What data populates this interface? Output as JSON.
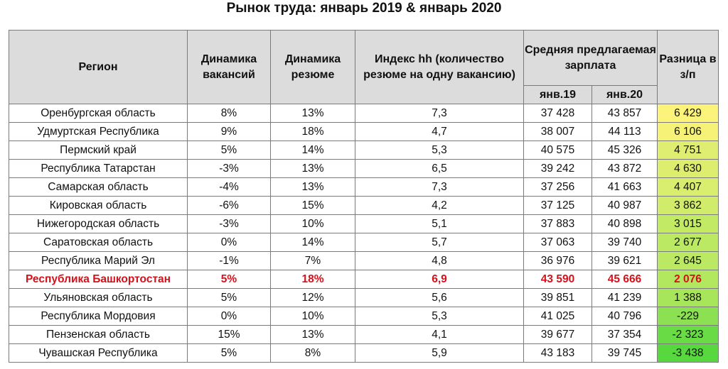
{
  "title": "Рынок труда: январь 2019 & январь 2020",
  "headers": {
    "region": "Регион",
    "vacancies": "Динамика вакансий",
    "resumes": "Динамика резюме",
    "hh_index": "Индекс hh (количество резюме на одну вакансию)",
    "salary_group": "Средняя предлагаемая зарплата",
    "jan19": "янв.19",
    "jan20": "янв.20",
    "diff": "Разница в з/п"
  },
  "colors": {
    "header_bg": "#dcdcdc",
    "highlight_text": "#d4111b",
    "diff_scale_high": "#fbf37a",
    "diff_scale_low": "#56d83e"
  },
  "highlight_region": "Республика Башкортостан",
  "chart_data": {
    "type": "table",
    "title": "Рынок труда: январь 2019 & январь 2020",
    "columns": [
      "Регион",
      "Динамика вакансий",
      "Динамика резюме",
      "Индекс hh (количество резюме на одну вакансию)",
      "Средняя предлагаемая зарплата янв.19",
      "Средняя предлагаемая зарплата янв.20",
      "Разница в з/п"
    ],
    "rows": [
      {
        "region": "Оренбургская область",
        "vacancies": "8%",
        "resumes": "13%",
        "index": "7,3",
        "jan19": "37 428",
        "jan20": "43 857",
        "diff": "6 429",
        "diff_value": 6429
      },
      {
        "region": "Удмуртская Республика",
        "vacancies": "9%",
        "resumes": "18%",
        "index": "4,7",
        "jan19": "38 007",
        "jan20": "44 113",
        "diff": "6 106",
        "diff_value": 6106
      },
      {
        "region": "Пермский край",
        "vacancies": "5%",
        "resumes": "14%",
        "index": "5,3",
        "jan19": "40 575",
        "jan20": "45 326",
        "diff": "4 751",
        "diff_value": 4751
      },
      {
        "region": "Республика Татарстан",
        "vacancies": "-3%",
        "resumes": "13%",
        "index": "6,5",
        "jan19": "39 242",
        "jan20": "43 872",
        "diff": "4 630",
        "diff_value": 4630
      },
      {
        "region": "Самарская область",
        "vacancies": "-4%",
        "resumes": "13%",
        "index": "7,3",
        "jan19": "37 256",
        "jan20": "41 663",
        "diff": "4 407",
        "diff_value": 4407
      },
      {
        "region": "Кировская область",
        "vacancies": "-6%",
        "resumes": "15%",
        "index": "4,2",
        "jan19": "37 125",
        "jan20": "40 987",
        "diff": "3 862",
        "diff_value": 3862
      },
      {
        "region": "Нижегородская область",
        "vacancies": "-3%",
        "resumes": "10%",
        "index": "5,1",
        "jan19": "37 883",
        "jan20": "40 898",
        "diff": "3 015",
        "diff_value": 3015
      },
      {
        "region": "Саратовская область",
        "vacancies": "0%",
        "resumes": "14%",
        "index": "5,7",
        "jan19": "37 063",
        "jan20": "39 740",
        "diff": "2 677",
        "diff_value": 2677
      },
      {
        "region": "Республика Марий Эл",
        "vacancies": "-1%",
        "resumes": "7%",
        "index": "4,8",
        "jan19": "36 976",
        "jan20": "39 621",
        "diff": "2 645",
        "diff_value": 2645
      },
      {
        "region": "Республика Башкортостан",
        "vacancies": "5%",
        "resumes": "18%",
        "index": "6,9",
        "jan19": "43 590",
        "jan20": "45 666",
        "diff": "2 076",
        "diff_value": 2076
      },
      {
        "region": "Ульяновская область",
        "vacancies": "5%",
        "resumes": "12%",
        "index": "5,6",
        "jan19": "39 851",
        "jan20": "41 239",
        "diff": "1 388",
        "diff_value": 1388
      },
      {
        "region": "Республика Мордовия",
        "vacancies": "0%",
        "resumes": "10%",
        "index": "5,3",
        "jan19": "41 025",
        "jan20": "40 796",
        "diff": "-229",
        "diff_value": -229
      },
      {
        "region": "Пензенская область",
        "vacancies": "15%",
        "resumes": "13%",
        "index": "4,1",
        "jan19": "39 677",
        "jan20": "37 354",
        "diff": "-2 323",
        "diff_value": -2323
      },
      {
        "region": "Чувашская Республика",
        "vacancies": "5%",
        "resumes": "8%",
        "index": "5,9",
        "jan19": "43 183",
        "jan20": "39 745",
        "diff": "-3 438",
        "diff_value": -3438
      }
    ]
  }
}
